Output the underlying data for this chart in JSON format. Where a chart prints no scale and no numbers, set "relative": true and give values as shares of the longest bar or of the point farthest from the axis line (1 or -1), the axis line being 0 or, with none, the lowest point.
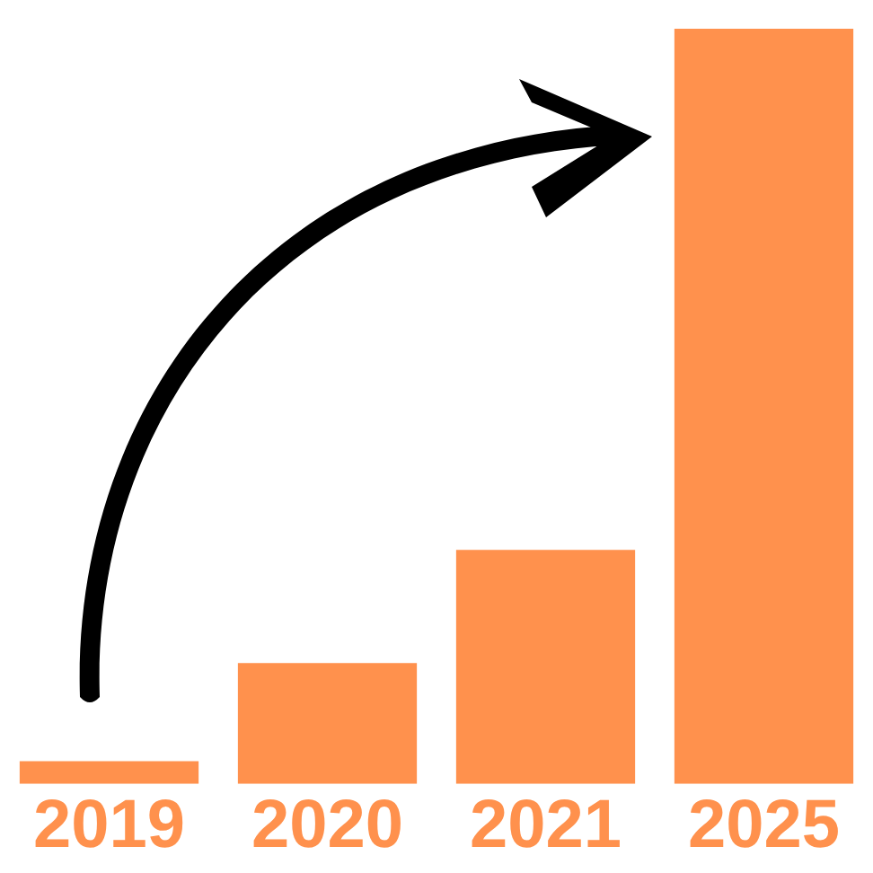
{
  "chart_data": {
    "type": "bar",
    "relative": true,
    "categories": [
      "2019",
      "2020",
      "2021",
      "2025"
    ],
    "values": [
      0.03,
      0.16,
      0.31,
      1
    ],
    "color": "#ff914d",
    "grid": false,
    "legend": false
  }
}
